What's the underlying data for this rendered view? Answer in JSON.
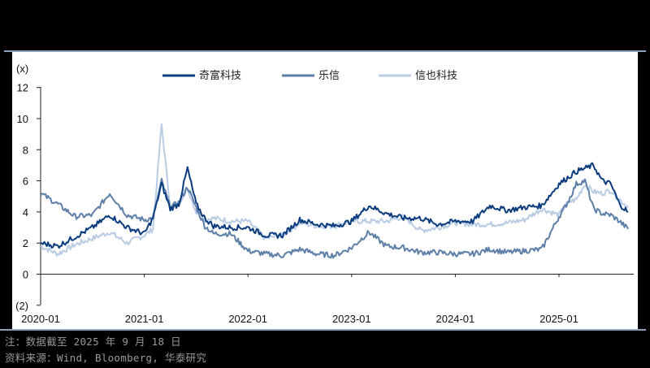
{
  "chart_data": {
    "type": "line",
    "title": "",
    "xlabel": "",
    "ylabel": "(x)",
    "ylim": [
      -2,
      12
    ],
    "yticks": [
      "12",
      "10",
      "8",
      "6",
      "4",
      "2",
      "0",
      "(2)"
    ],
    "xticks": [
      "2020-01",
      "2021-01",
      "2022-01",
      "2023-01",
      "2024-01",
      "2025-01"
    ],
    "grid": false,
    "legend_position": "top",
    "x": [
      "2020-01",
      "2020-03",
      "2020-05",
      "2020-07",
      "2020-09",
      "2020-11",
      "2021-01",
      "2021-02",
      "2021-03",
      "2021-04",
      "2021-05",
      "2021-06",
      "2021-07",
      "2021-08",
      "2021-09",
      "2021-11",
      "2022-01",
      "2022-03",
      "2022-05",
      "2022-07",
      "2022-09",
      "2022-11",
      "2023-01",
      "2023-03",
      "2023-05",
      "2023-07",
      "2023-09",
      "2023-11",
      "2024-01",
      "2024-03",
      "2024-05",
      "2024-07",
      "2024-09",
      "2024-11",
      "2025-01",
      "2025-02",
      "2025-03",
      "2025-04",
      "2025-05",
      "2025-06",
      "2025-07",
      "2025-08",
      "2025-09"
    ],
    "series": [
      {
        "name": "奇富科技",
        "color": "#0b3c7d",
        "values": [
          2.0,
          1.8,
          2.4,
          3.0,
          3.8,
          3.0,
          2.6,
          3.6,
          5.8,
          4.2,
          4.5,
          6.8,
          4.5,
          3.6,
          3.1,
          3.0,
          3.0,
          2.5,
          2.5,
          3.5,
          3.2,
          3.1,
          3.4,
          4.4,
          3.9,
          3.6,
          3.6,
          3.2,
          3.4,
          3.4,
          4.4,
          4.1,
          4.3,
          4.4,
          5.8,
          6.2,
          6.6,
          6.8,
          7.0,
          6.0,
          5.8,
          4.5,
          4.0
        ]
      },
      {
        "name": "乐信",
        "color": "#5d7fa8",
        "values": [
          5.2,
          4.5,
          3.7,
          3.8,
          5.2,
          3.8,
          3.5,
          3.6,
          6.0,
          4.3,
          4.6,
          5.6,
          4.3,
          3.1,
          2.6,
          2.6,
          1.5,
          1.3,
          1.2,
          1.6,
          1.3,
          1.2,
          1.7,
          2.7,
          1.8,
          1.7,
          1.4,
          1.4,
          1.3,
          1.3,
          1.6,
          1.4,
          1.5,
          1.6,
          3.7,
          4.6,
          5.8,
          6.0,
          4.2,
          3.9,
          3.8,
          3.4,
          2.9
        ]
      },
      {
        "name": "信也科技",
        "color": "#b8cce4",
        "values": [
          1.8,
          1.3,
          1.9,
          2.3,
          2.7,
          2.0,
          2.5,
          2.9,
          9.6,
          4.3,
          4.6,
          5.6,
          4.0,
          3.5,
          3.6,
          3.4,
          3.4,
          2.3,
          2.5,
          3.3,
          3.1,
          3.1,
          3.4,
          3.4,
          3.4,
          3.7,
          2.8,
          3.0,
          3.3,
          3.2,
          3.2,
          3.3,
          3.5,
          4.2,
          3.8,
          4.6,
          4.8,
          5.8,
          5.3,
          5.2,
          5.4,
          4.8,
          4.3
        ]
      }
    ]
  },
  "legend": {
    "items": [
      {
        "label": "奇富科技",
        "color": "#0b3c7d"
      },
      {
        "label": "乐信",
        "color": "#5d7fa8"
      },
      {
        "label": "信也科技",
        "color": "#b8cce4"
      }
    ]
  },
  "axis": {
    "y_unit": "(x)",
    "y_labels": [
      "12",
      "10",
      "8",
      "6",
      "4",
      "2",
      "0",
      "(2)"
    ],
    "x_labels": [
      "2020-01",
      "2021-01",
      "2022-01",
      "2023-01",
      "2024-01",
      "2025-01"
    ]
  },
  "footnotes": {
    "note": "注：数据截至 2025 年 9 月 18 日",
    "source": "资料来源：Wind, Bloomberg, 华泰研究"
  }
}
